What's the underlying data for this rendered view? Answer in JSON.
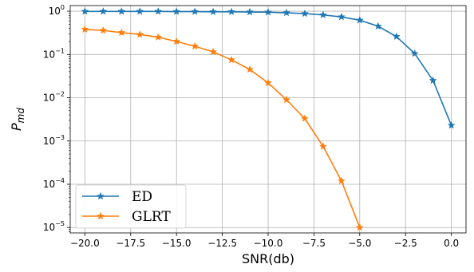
{
  "chart_data": {
    "type": "line",
    "title": "",
    "xlabel": "SNR(db)",
    "ylabel_main": "P",
    "ylabel_sub": "md",
    "xlim": [
      -20.8,
      0.8
    ],
    "ylim": [
      7.5e-06,
      1.35
    ],
    "yscale": "log",
    "grid": true,
    "legend_position": "lower-left",
    "x_ticks": [
      -20,
      -17.5,
      -15,
      -12.5,
      -10,
      -7.5,
      -5,
      -2.5,
      0
    ],
    "x_tick_labels": [
      "−20.0",
      "−17.5",
      "−15.0",
      "−12.5",
      "−10.0",
      "−7.5",
      "−5.0",
      "−2.5",
      "0.0"
    ],
    "y_ticks": [
      {
        "value": 1,
        "base": "10",
        "exp": "0"
      },
      {
        "value": 0.1,
        "base": "10",
        "exp": "−1"
      },
      {
        "value": 0.01,
        "base": "10",
        "exp": "−2"
      },
      {
        "value": 0.001,
        "base": "10",
        "exp": "−3"
      },
      {
        "value": 0.0001,
        "base": "10",
        "exp": "−4"
      },
      {
        "value": 1e-05,
        "base": "10",
        "exp": "−5"
      }
    ],
    "series": [
      {
        "name": "ED",
        "color": "#1f77b4",
        "marker": "star",
        "x": [
          -20,
          -19,
          -18,
          -17,
          -16,
          -15,
          -14,
          -13,
          -12,
          -11,
          -10,
          -9,
          -8,
          -7,
          -6,
          -5,
          -4,
          -3,
          -2,
          -1,
          0
        ],
        "y": [
          0.99,
          0.99,
          0.99,
          0.99,
          0.99,
          0.98,
          0.98,
          0.97,
          0.97,
          0.96,
          0.95,
          0.92,
          0.88,
          0.82,
          0.74,
          0.62,
          0.45,
          0.26,
          0.105,
          0.025,
          0.0023
        ]
      },
      {
        "name": "GLRT",
        "color": "#ff7f0e",
        "marker": "star",
        "x": [
          -20,
          -19,
          -18,
          -17,
          -16,
          -15,
          -14,
          -13,
          -12,
          -11,
          -10,
          -9,
          -8,
          -7,
          -6,
          -5
        ],
        "y": [
          0.38,
          0.36,
          0.32,
          0.29,
          0.25,
          0.2,
          0.155,
          0.115,
          0.075,
          0.045,
          0.022,
          0.009,
          0.0033,
          0.00075,
          0.00012,
          1e-05
        ]
      }
    ]
  }
}
